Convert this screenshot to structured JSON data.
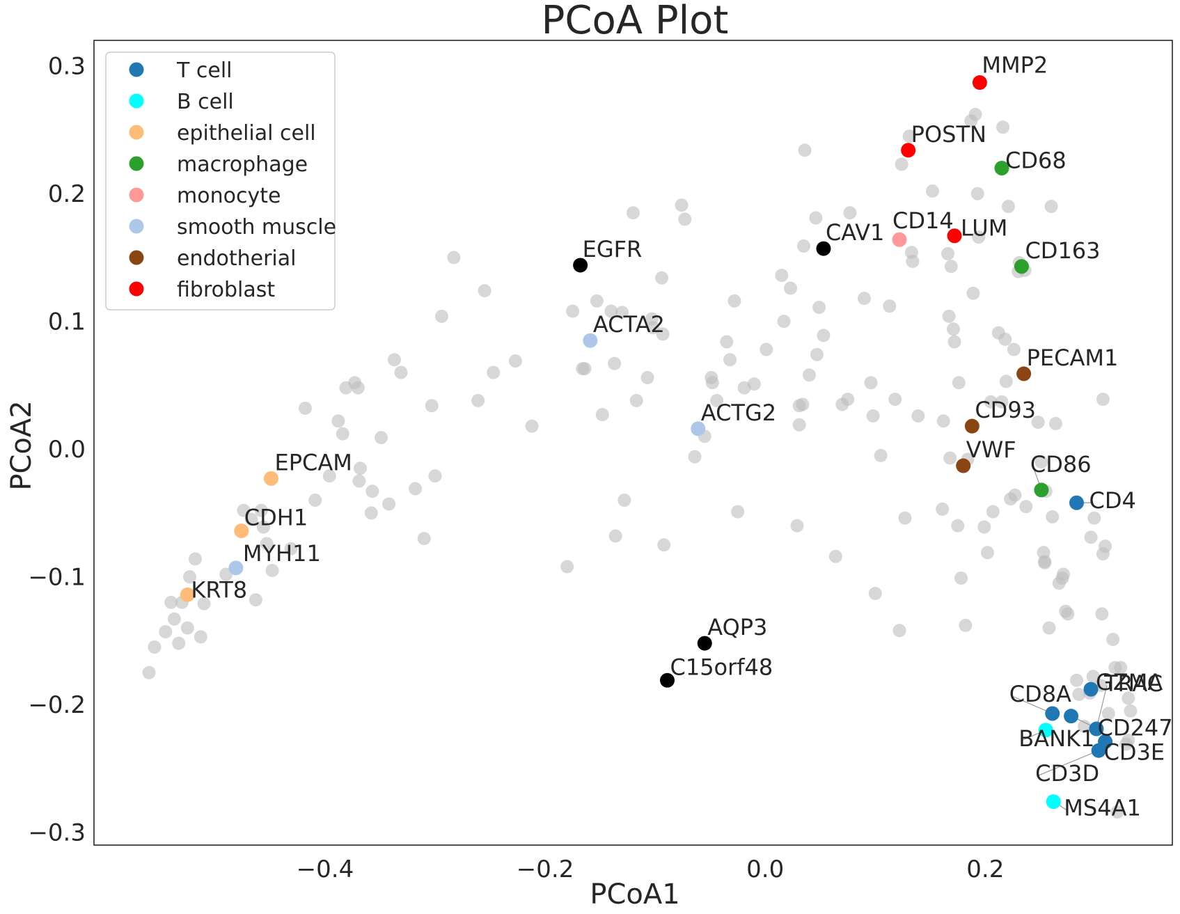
{
  "chart_data": {
    "type": "scatter",
    "title": "PCoA Plot",
    "xlabel": "PCoA1",
    "ylabel": "PCoA2",
    "xlim": [
      -0.61,
      0.37
    ],
    "ylim": [
      -0.31,
      0.32
    ],
    "xticks": [
      -0.4,
      -0.2,
      0.0,
      0.2
    ],
    "xtick_labels": [
      "−0.4",
      "−0.2",
      "0.0",
      "0.2"
    ],
    "yticks": [
      -0.3,
      -0.2,
      -0.1,
      0.0,
      0.1,
      0.2,
      0.3
    ],
    "ytick_labels": [
      "−0.3",
      "−0.2",
      "−0.1",
      "0.0",
      "0.1",
      "0.2",
      "0.3"
    ],
    "grid": false,
    "legend_position": "top-left",
    "legend": [
      {
        "name": "T cell",
        "color": "#1f77b4"
      },
      {
        "name": "B cell",
        "color": "#00ffff"
      },
      {
        "name": "epithelial cell",
        "color": "#ffbb78"
      },
      {
        "name": "macrophage",
        "color": "#2ca02c"
      },
      {
        "name": "monocyte",
        "color": "#ff9896"
      },
      {
        "name": "smooth muscle",
        "color": "#aec7e8"
      },
      {
        "name": "endotherial",
        "color": "#8b4513"
      },
      {
        "name": "fibroblast",
        "color": "#ff0000"
      }
    ],
    "highlighted_points": [
      {
        "label": "MMP2",
        "group": "fibroblast",
        "x": 0.195,
        "y": 0.287
      },
      {
        "label": "POSTN",
        "group": "fibroblast",
        "x": 0.13,
        "y": 0.234
      },
      {
        "label": "LUM",
        "group": "fibroblast",
        "x": 0.172,
        "y": 0.167
      },
      {
        "label": "CD68",
        "group": "macrophage",
        "x": 0.215,
        "y": 0.22
      },
      {
        "label": "CD163",
        "group": "macrophage",
        "x": 0.233,
        "y": 0.143
      },
      {
        "label": "CD86",
        "group": "macrophage",
        "x": 0.251,
        "y": -0.032
      },
      {
        "label": "CD14",
        "group": "monocyte",
        "x": 0.122,
        "y": 0.164
      },
      {
        "label": "CAV1",
        "group": "other",
        "x": 0.053,
        "y": 0.157
      },
      {
        "label": "EGFR",
        "group": "other",
        "x": -0.168,
        "y": 0.144
      },
      {
        "label": "AQP3",
        "group": "other",
        "x": -0.055,
        "y": -0.152
      },
      {
        "label": "C15orf48",
        "group": "other",
        "x": -0.089,
        "y": -0.181
      },
      {
        "label": "ACTA2",
        "group": "smooth muscle",
        "x": -0.159,
        "y": 0.085
      },
      {
        "label": "ACTG2",
        "group": "smooth muscle",
        "x": -0.061,
        "y": 0.016
      },
      {
        "label": "MYH11",
        "group": "smooth muscle",
        "x": -0.481,
        "y": -0.093
      },
      {
        "label": "EPCAM",
        "group": "epithelial cell",
        "x": -0.449,
        "y": -0.023
      },
      {
        "label": "CDH1",
        "group": "epithelial cell",
        "x": -0.476,
        "y": -0.064
      },
      {
        "label": "KRT8",
        "group": "epithelial cell",
        "x": -0.525,
        "y": -0.114
      },
      {
        "label": "PECAM1",
        "group": "endotherial",
        "x": 0.235,
        "y": 0.059
      },
      {
        "label": "CD93",
        "group": "endotherial",
        "x": 0.188,
        "y": 0.018
      },
      {
        "label": "VWF",
        "group": "endotherial",
        "x": 0.18,
        "y": -0.013
      },
      {
        "label": "CD4",
        "group": "T cell",
        "x": 0.283,
        "y": -0.042
      },
      {
        "label": "TRAC",
        "group": "T cell",
        "x": 0.301,
        "y": -0.219
      },
      {
        "label": "GZMA",
        "group": "T cell",
        "x": 0.296,
        "y": -0.188
      },
      {
        "label": "CD8A",
        "group": "T cell",
        "x": 0.261,
        "y": -0.207
      },
      {
        "label": "CD247",
        "group": "T cell",
        "x": 0.278,
        "y": -0.209
      },
      {
        "label": "CD3E",
        "group": "T cell",
        "x": 0.309,
        "y": -0.229
      },
      {
        "label": "CD3D",
        "group": "T cell",
        "x": 0.303,
        "y": -0.236
      },
      {
        "label": "BANK1",
        "group": "B cell",
        "x": 0.255,
        "y": -0.22
      },
      {
        "label": "MS4A1",
        "group": "B cell",
        "x": 0.262,
        "y": -0.276
      }
    ],
    "other_points": [
      [
        -0.56,
        -0.175
      ],
      [
        -0.555,
        -0.155
      ],
      [
        -0.545,
        -0.143
      ],
      [
        -0.54,
        -0.12
      ],
      [
        -0.537,
        -0.133
      ],
      [
        -0.533,
        -0.152
      ],
      [
        -0.53,
        -0.12
      ],
      [
        -0.525,
        -0.14
      ],
      [
        -0.523,
        -0.1
      ],
      [
        -0.518,
        -0.086
      ],
      [
        -0.513,
        -0.147
      ],
      [
        -0.51,
        -0.121
      ],
      [
        -0.49,
        -0.098
      ],
      [
        -0.474,
        -0.048
      ],
      [
        -0.467,
        -0.055
      ],
      [
        -0.463,
        -0.118
      ],
      [
        -0.458,
        -0.048
      ],
      [
        -0.456,
        -0.061
      ],
      [
        -0.453,
        -0.074
      ],
      [
        -0.448,
        -0.095
      ],
      [
        -0.431,
        -0.078
      ],
      [
        -0.418,
        0.032
      ],
      [
        -0.409,
        -0.04
      ],
      [
        -0.396,
        -0.021
      ],
      [
        -0.388,
        0.022
      ],
      [
        -0.384,
        0.012
      ],
      [
        -0.381,
        0.048
      ],
      [
        -0.373,
        0.052
      ],
      [
        -0.37,
        0.048
      ],
      [
        -0.368,
        -0.015
      ],
      [
        -0.369,
        -0.025
      ],
      [
        -0.358,
        -0.05
      ],
      [
        -0.357,
        -0.033
      ],
      [
        -0.349,
        0.009
      ],
      [
        -0.342,
        -0.043
      ],
      [
        -0.337,
        0.07
      ],
      [
        -0.331,
        0.06
      ],
      [
        -0.318,
        -0.031
      ],
      [
        -0.31,
        -0.07
      ],
      [
        -0.303,
        0.034
      ],
      [
        -0.3,
        -0.021
      ],
      [
        -0.294,
        0.104
      ],
      [
        -0.283,
        0.15
      ],
      [
        -0.261,
        0.038
      ],
      [
        -0.255,
        0.124
      ],
      [
        -0.247,
        0.06
      ],
      [
        -0.227,
        0.069
      ],
      [
        -0.212,
        0.018
      ],
      [
        -0.18,
        -0.092
      ],
      [
        -0.175,
        0.108
      ],
      [
        -0.166,
        0.063
      ],
      [
        -0.164,
        0.063
      ],
      [
        -0.153,
        0.116
      ],
      [
        -0.148,
        0.027
      ],
      [
        -0.14,
        0.108
      ],
      [
        -0.137,
        0.067
      ],
      [
        -0.136,
        -0.068
      ],
      [
        -0.13,
        0.107
      ],
      [
        -0.128,
        -0.04
      ],
      [
        -0.12,
        0.185
      ],
      [
        -0.117,
        0.038
      ],
      [
        -0.107,
        0.056
      ],
      [
        -0.103,
        0.102
      ],
      [
        -0.102,
        0.095
      ],
      [
        -0.094,
        0.134
      ],
      [
        -0.093,
        0.09
      ],
      [
        -0.092,
        -0.075
      ],
      [
        -0.076,
        0.191
      ],
      [
        -0.073,
        0.18
      ],
      [
        -0.064,
        -0.006
      ],
      [
        -0.055,
        0.01
      ],
      [
        -0.049,
        0.056
      ],
      [
        -0.048,
        0.052
      ],
      [
        -0.044,
        0.038
      ],
      [
        -0.035,
        0.084
      ],
      [
        -0.032,
        0.07
      ],
      [
        -0.028,
        0.116
      ],
      [
        -0.025,
        -0.049
      ],
      [
        -0.019,
        0.048
      ],
      [
        -0.01,
        0.051
      ],
      [
        0.001,
        0.078
      ],
      [
        0.015,
        0.136
      ],
      [
        0.017,
        0.1
      ],
      [
        0.023,
        0.126
      ],
      [
        0.029,
        -0.06
      ],
      [
        0.031,
        0.034
      ],
      [
        0.031,
        0.019
      ],
      [
        0.034,
        0.035
      ],
      [
        0.035,
        0.159
      ],
      [
        0.036,
        0.234
      ],
      [
        0.04,
        0.058
      ],
      [
        0.046,
        0.181
      ],
      [
        0.047,
        0.074
      ],
      [
        0.049,
        0.111
      ],
      [
        0.053,
        0.089
      ],
      [
        0.064,
        -0.084
      ],
      [
        0.07,
        0.035
      ],
      [
        0.075,
        0.039
      ],
      [
        0.077,
        0.185
      ],
      [
        0.09,
        0.118
      ],
      [
        0.096,
        0.052
      ],
      [
        0.098,
        0.026
      ],
      [
        0.1,
        -0.113
      ],
      [
        0.105,
        -0.005
      ],
      [
        0.113,
        0.112
      ],
      [
        0.118,
        0.039
      ],
      [
        0.122,
        -0.142
      ],
      [
        0.124,
        0.223
      ],
      [
        0.127,
        -0.054
      ],
      [
        0.131,
        0.245
      ],
      [
        0.133,
        0.154
      ],
      [
        0.134,
        0.147
      ],
      [
        0.139,
        0.026
      ],
      [
        0.152,
        0.202
      ],
      [
        0.161,
        -0.047
      ],
      [
        0.162,
        0.022
      ],
      [
        0.166,
        0.153
      ],
      [
        0.167,
        0.104
      ],
      [
        0.168,
        -0.007
      ],
      [
        0.169,
        0.143
      ],
      [
        0.171,
        0.094
      ],
      [
        0.172,
        0.084
      ],
      [
        0.175,
        -0.06
      ],
      [
        0.176,
        0.052
      ],
      [
        0.178,
        -0.101
      ],
      [
        0.182,
        -0.138
      ],
      [
        0.184,
        -0.008
      ],
      [
        0.187,
        0.257
      ],
      [
        0.189,
        0.122
      ],
      [
        0.191,
        0.262
      ],
      [
        0.193,
        0.2
      ],
      [
        0.194,
        0.166
      ],
      [
        0.199,
        -0.061
      ],
      [
        0.202,
        -0.081
      ],
      [
        0.205,
        0.037
      ],
      [
        0.207,
        -0.049
      ],
      [
        0.212,
        0.091
      ],
      [
        0.215,
        0.037
      ],
      [
        0.216,
        0.252
      ],
      [
        0.218,
        0.086
      ],
      [
        0.219,
        0.053
      ],
      [
        0.221,
        0.19
      ],
      [
        0.223,
        -0.039
      ],
      [
        0.226,
        0.078
      ],
      [
        0.227,
        -0.036
      ],
      [
        0.23,
        0.139
      ],
      [
        0.231,
        0.146
      ],
      [
        0.236,
        0.14
      ],
      [
        0.237,
        -0.045
      ],
      [
        0.248,
        0.021
      ],
      [
        0.251,
        -0.01
      ],
      [
        0.253,
        -0.081
      ],
      [
        0.254,
        -0.088
      ],
      [
        0.254,
        -0.089
      ],
      [
        0.255,
        -0.033
      ],
      [
        0.258,
        -0.14
      ],
      [
        0.26,
        0.19
      ],
      [
        0.261,
        -0.053
      ],
      [
        0.264,
        0.02
      ],
      [
        0.267,
        -0.105
      ],
      [
        0.27,
        -0.101
      ],
      [
        0.271,
        -0.098
      ],
      [
        0.273,
        -0.127
      ],
      [
        0.275,
        -0.129
      ],
      [
        0.283,
        -0.181
      ],
      [
        0.285,
        -0.192
      ],
      [
        0.29,
        -0.217
      ],
      [
        0.295,
        -0.191
      ],
      [
        0.296,
        -0.069
      ],
      [
        0.298,
        -0.178
      ],
      [
        0.299,
        -0.054
      ],
      [
        0.305,
        -0.185
      ],
      [
        0.306,
        -0.129
      ],
      [
        0.307,
        -0.082
      ],
      [
        0.307,
        0.039
      ],
      [
        0.309,
        -0.076
      ],
      [
        0.312,
        -0.207
      ],
      [
        0.316,
        -0.149
      ],
      [
        0.318,
        -0.171
      ],
      [
        0.32,
        -0.284
      ],
      [
        0.323,
        -0.171
      ],
      [
        0.328,
        -0.231
      ],
      [
        0.33,
        -0.228
      ],
      [
        0.33,
        -0.195
      ],
      [
        0.332,
        -0.205
      ]
    ]
  }
}
